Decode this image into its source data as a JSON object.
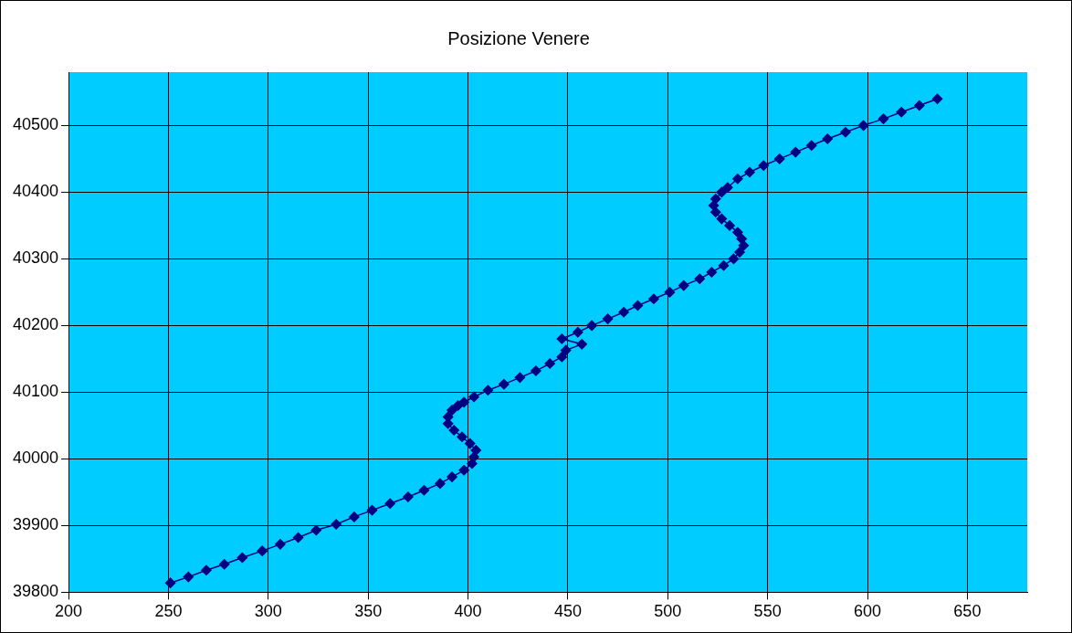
{
  "chart_data": {
    "type": "line",
    "title": "Posizione Venere",
    "x": [
      251,
      260,
      269,
      278,
      287,
      297,
      306,
      315,
      324,
      334,
      343,
      352,
      361,
      370,
      378,
      386,
      392,
      398,
      402,
      403,
      404,
      401,
      397,
      393,
      390,
      390,
      392,
      395,
      398,
      403,
      410,
      418,
      426,
      434,
      441,
      447,
      449,
      457,
      447,
      455,
      462,
      470,
      478,
      485,
      493,
      501,
      508,
      516,
      522,
      528,
      533,
      536,
      538,
      537,
      535,
      531,
      527,
      524,
      523,
      524,
      527,
      530,
      535,
      541,
      548,
      556,
      564,
      572,
      580,
      589,
      598,
      608,
      617,
      626,
      635
    ],
    "series": [
      {
        "color": "#000080",
        "values": [
          39814,
          39823,
          39833,
          39842,
          39852,
          39862,
          39872,
          39882,
          39893,
          39902,
          39913,
          39923,
          39933,
          39943,
          39953,
          39963,
          39973,
          39983,
          39993,
          40003,
          40013,
          40023,
          40033,
          40043,
          40053,
          40063,
          40073,
          40080,
          40085,
          40093,
          40103,
          40112,
          40122,
          40132,
          40143,
          40153,
          40163,
          40172,
          40180,
          40190,
          40200,
          40210,
          40220,
          40230,
          40240,
          40250,
          40260,
          40270,
          40280,
          40290,
          40300,
          40310,
          40320,
          40330,
          40340,
          40350,
          40360,
          40370,
          40380,
          40390,
          40400,
          40407,
          40420,
          40430,
          40440,
          40450,
          40460,
          40470,
          40480,
          40490,
          40500,
          40510,
          40520,
          40530,
          40540
        ]
      }
    ],
    "xlim": [
      200,
      680
    ],
    "xticks": [
      200,
      250,
      300,
      350,
      400,
      450,
      500,
      550,
      600,
      650
    ],
    "ylim": [
      39800,
      40580
    ],
    "yticks": [
      39800,
      39900,
      40000,
      40100,
      40200,
      40300,
      40400,
      40500
    ],
    "grid": true,
    "legend": false,
    "marker": "diamond",
    "line_style": "solid"
  }
}
